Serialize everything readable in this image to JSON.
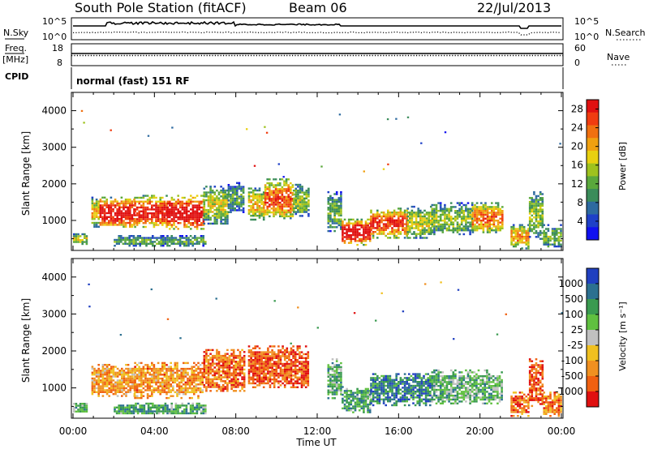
{
  "header": {
    "station": "South Pole Station (fitACF)",
    "beam": "Beam 06",
    "date": "22/Jul/2013"
  },
  "top_panels": {
    "nsky_label": "N.Sky",
    "nsky_ticks": [
      "10^5",
      "10^0"
    ],
    "nsearch_label": "N.Search",
    "nsearch_ticks": [
      "10^5",
      "10^0"
    ],
    "freq_label": "Freq.",
    "freq_unit": "[MHz]",
    "freq_ticks": [
      "18",
      "8"
    ],
    "nave_label": "Nave",
    "nave_ticks": [
      "60",
      "0"
    ],
    "cpid_label": "CPID",
    "cpid_text": "normal (fast) 151 RF"
  },
  "chart_data": [
    {
      "type": "heatmap",
      "name": "power-panel",
      "ylabel": "Slant Range [km]",
      "xlabel": "",
      "ylim": [
        180,
        4500
      ],
      "yticks": [
        "1000",
        "2000",
        "3000",
        "4000"
      ],
      "xlim_hours": [
        0,
        24
      ],
      "colorbar": {
        "label": "Power [dB]",
        "ticks": [
          "4",
          "8",
          "12",
          "16",
          "20",
          "24",
          "28"
        ],
        "range": [
          0,
          30
        ],
        "colors": [
          "#1010f0",
          "#1e40c8",
          "#2d6aa0",
          "#3a8c5a",
          "#5aa83c",
          "#9ec21e",
          "#e8d010",
          "#f0a010",
          "#f07010",
          "#f03c10",
          "#e01010"
        ]
      },
      "regions": [
        {
          "t0": 0.0,
          "t1": 0.7,
          "r0": 350,
          "r1": 650,
          "level": 0.45
        },
        {
          "t0": 0.9,
          "t1": 1.3,
          "r0": 850,
          "r1": 1650,
          "level": 0.55
        },
        {
          "t0": 1.3,
          "t1": 3.0,
          "r0": 800,
          "r1": 1650,
          "level": 0.85
        },
        {
          "t0": 3.0,
          "t1": 4.6,
          "r0": 800,
          "r1": 1700,
          "level": 0.8
        },
        {
          "t0": 4.6,
          "t1": 6.4,
          "r0": 750,
          "r1": 1700,
          "level": 0.9
        },
        {
          "t0": 6.4,
          "t1": 7.6,
          "r0": 900,
          "r1": 1950,
          "level": 0.45
        },
        {
          "t0": 7.6,
          "t1": 8.4,
          "r0": 1200,
          "r1": 2050,
          "level": 0.3
        },
        {
          "t0": 2.0,
          "t1": 6.5,
          "r0": 300,
          "r1": 600,
          "level": 0.3
        },
        {
          "t0": 8.6,
          "t1": 9.4,
          "r0": 1000,
          "r1": 1900,
          "level": 0.55
        },
        {
          "t0": 9.4,
          "t1": 10.8,
          "r0": 1050,
          "r1": 2150,
          "level": 0.7
        },
        {
          "t0": 10.8,
          "t1": 11.6,
          "r0": 1100,
          "r1": 2000,
          "level": 0.4
        },
        {
          "t0": 12.5,
          "t1": 13.2,
          "r0": 700,
          "r1": 1800,
          "level": 0.35
        },
        {
          "t0": 13.2,
          "t1": 14.6,
          "r0": 350,
          "r1": 1050,
          "level": 0.9
        },
        {
          "t0": 14.6,
          "t1": 16.4,
          "r0": 550,
          "r1": 1350,
          "level": 0.75
        },
        {
          "t0": 16.4,
          "t1": 17.6,
          "r0": 500,
          "r1": 1400,
          "level": 0.45
        },
        {
          "t0": 17.6,
          "t1": 19.6,
          "r0": 600,
          "r1": 1500,
          "level": 0.4
        },
        {
          "t0": 19.6,
          "t1": 21.1,
          "r0": 650,
          "r1": 1500,
          "level": 0.65
        },
        {
          "t0": 21.5,
          "t1": 22.4,
          "r0": 250,
          "r1": 900,
          "level": 0.6
        },
        {
          "t0": 22.4,
          "t1": 23.1,
          "r0": 500,
          "r1": 1800,
          "level": 0.4
        },
        {
          "t0": 23.1,
          "t1": 24.0,
          "r0": 250,
          "r1": 900,
          "level": 0.35
        }
      ]
    },
    {
      "type": "heatmap",
      "name": "velocity-panel",
      "ylabel": "Slant Range [km]",
      "xlabel": "Time UT",
      "ylim": [
        180,
        4500
      ],
      "yticks": [
        "1000",
        "2000",
        "3000",
        "4000"
      ],
      "xticks": [
        "00:00",
        "04:00",
        "08:00",
        "12:00",
        "16:00",
        "20:00",
        "00:00"
      ],
      "xlim_hours": [
        0,
        24
      ],
      "colorbar": {
        "label": "Velocity [m s⁻¹]",
        "ticks": [
          "1000",
          "500",
          "100",
          "25",
          "-25",
          "-100",
          "-500",
          "-1000"
        ],
        "colors": [
          "#2040c0",
          "#2c7090",
          "#3a9a50",
          "#60c040",
          "#c0c0c0",
          "#f0c020",
          "#f09020",
          "#f06010",
          "#e01010"
        ]
      },
      "regions": [
        {
          "t0": 0.0,
          "t1": 0.7,
          "r0": 350,
          "r1": 650,
          "level": 0.35
        },
        {
          "t0": 0.9,
          "t1": 3.0,
          "r0": 800,
          "r1": 1650,
          "level": 0.7
        },
        {
          "t0": 3.0,
          "t1": 6.4,
          "r0": 750,
          "r1": 1700,
          "level": 0.72
        },
        {
          "t0": 6.4,
          "t1": 8.4,
          "r0": 900,
          "r1": 2050,
          "level": 0.8
        },
        {
          "t0": 2.0,
          "t1": 6.5,
          "r0": 300,
          "r1": 600,
          "level": 0.3
        },
        {
          "t0": 8.6,
          "t1": 11.6,
          "r0": 1000,
          "r1": 2150,
          "level": 0.85
        },
        {
          "t0": 12.5,
          "t1": 13.2,
          "r0": 700,
          "r1": 1800,
          "level": 0.35
        },
        {
          "t0": 13.2,
          "t1": 14.6,
          "r0": 350,
          "r1": 1050,
          "level": 0.3
        },
        {
          "t0": 14.6,
          "t1": 17.6,
          "r0": 550,
          "r1": 1400,
          "level": 0.2
        },
        {
          "t0": 17.6,
          "t1": 21.1,
          "r0": 600,
          "r1": 1500,
          "level": 0.35
        },
        {
          "t0": 21.5,
          "t1": 22.4,
          "r0": 250,
          "r1": 900,
          "level": 0.8
        },
        {
          "t0": 22.4,
          "t1": 23.1,
          "r0": 500,
          "r1": 1800,
          "level": 0.85
        },
        {
          "t0": 23.1,
          "t1": 24.0,
          "r0": 250,
          "r1": 900,
          "level": 0.75
        }
      ]
    }
  ]
}
